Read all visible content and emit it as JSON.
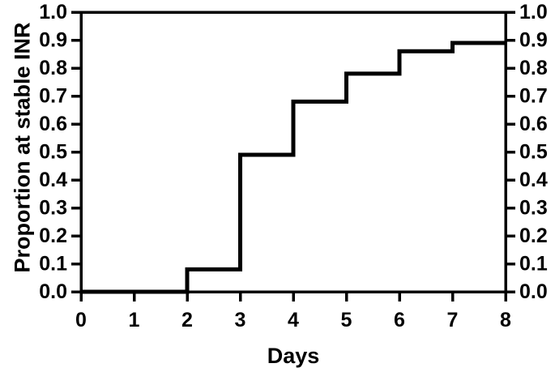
{
  "figure": {
    "background": "#ffffff"
  },
  "chart_data": {
    "type": "line",
    "line_style": "step-after",
    "title": "",
    "xlabel": "Days",
    "ylabel": "Proportion at stable INR",
    "xlim": [
      0,
      8
    ],
    "ylim": [
      0,
      1
    ],
    "x_tick_labels": [
      "0",
      "1",
      "2",
      "3",
      "4",
      "5",
      "6",
      "7",
      "8"
    ],
    "y_tick_labels": [
      "0.0",
      "0.1",
      "0.2",
      "0.3",
      "0.4",
      "0.5",
      "0.6",
      "0.7",
      "0.8",
      "0.9",
      "1.0"
    ],
    "y_axis_mirrored": true,
    "grid": false,
    "legend_position": "none",
    "frame": "full-box",
    "colors": {
      "curve": "#000000",
      "axis": "#000000",
      "text": "#000000",
      "background": "#ffffff"
    },
    "series": [
      {
        "name": "Proportion at stable INR",
        "points": [
          {
            "day": 0,
            "proportion": 0.0
          },
          {
            "day": 2,
            "proportion": 0.08
          },
          {
            "day": 3,
            "proportion": 0.49
          },
          {
            "day": 4,
            "proportion": 0.68
          },
          {
            "day": 5,
            "proportion": 0.78
          },
          {
            "day": 6,
            "proportion": 0.86
          },
          {
            "day": 7,
            "proportion": 0.89
          },
          {
            "day": 8,
            "proportion": 0.89
          }
        ]
      }
    ]
  }
}
